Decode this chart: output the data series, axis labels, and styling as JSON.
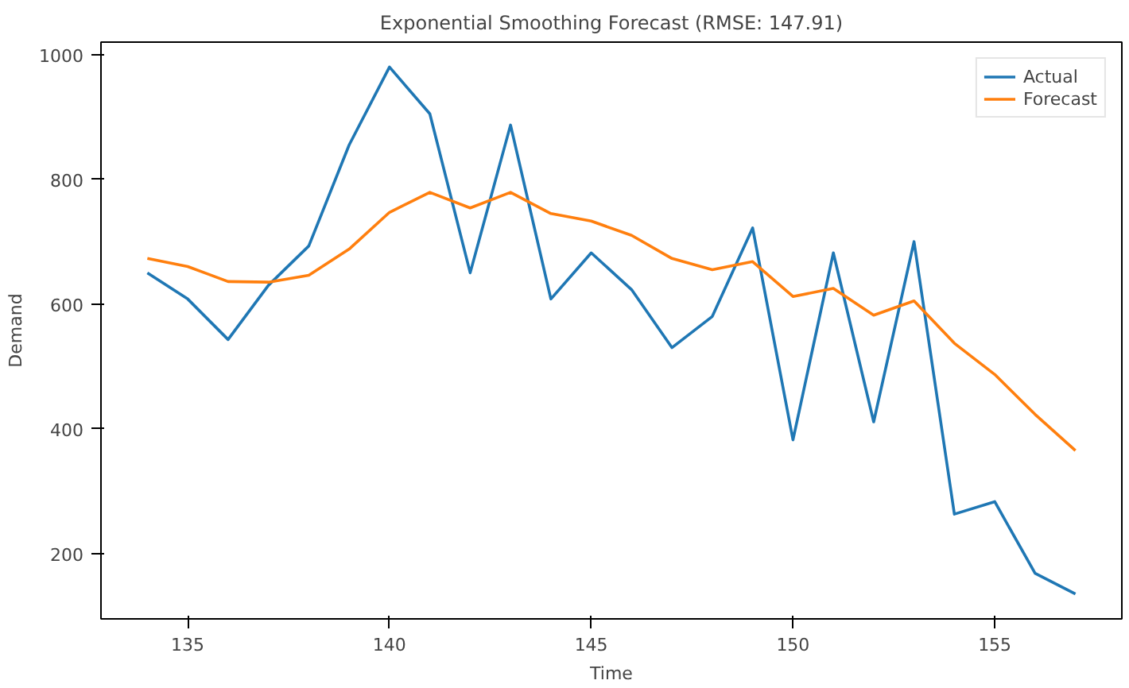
{
  "chart_data": {
    "type": "line",
    "title": "Exponential Smoothing Forecast (RMSE: 147.91)",
    "xlabel": "Time",
    "ylabel": "Demand",
    "x": [
      134,
      135,
      136,
      137,
      138,
      139,
      140,
      141,
      142,
      143,
      144,
      145,
      146,
      147,
      148,
      149,
      150,
      151,
      152,
      153,
      154,
      155,
      156,
      157
    ],
    "series": [
      {
        "name": "Actual",
        "color": "#1f77b4",
        "values": [
          650,
          608,
          543,
          630,
          693,
          855,
          980,
          905,
          650,
          887,
          608,
          682,
          623,
          530,
          580,
          722,
          382,
          682,
          411,
          700,
          263,
          283,
          168,
          135
        ]
      },
      {
        "name": "Forecast",
        "color": "#ff7f0e",
        "values": [
          673,
          660,
          636,
          635,
          646,
          688,
          747,
          779,
          754,
          779,
          745,
          733,
          710,
          673,
          655,
          668,
          612,
          625,
          582,
          605,
          537,
          487,
          423,
          365
        ]
      }
    ],
    "xlim": [
      132.85,
      158.15
    ],
    "ylim": [
      95,
      1020
    ],
    "xticks": [
      135,
      140,
      145,
      150,
      155
    ],
    "yticks": [
      200,
      400,
      600,
      800,
      1000
    ],
    "grid": false,
    "legend": "top right",
    "line_style": "solid"
  }
}
